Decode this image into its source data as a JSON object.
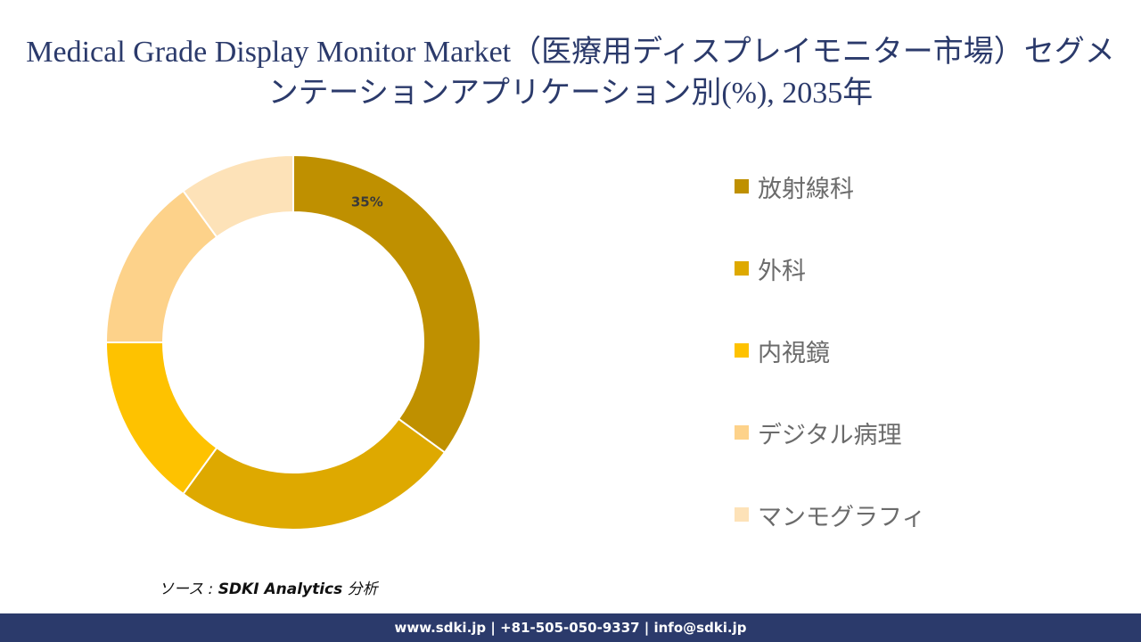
{
  "title": "Medical Grade Display Monitor Market（医療用ディスプレイモニター市場）セグメンテーションアプリケーション別(%), 2035年",
  "chart_data": {
    "type": "pie",
    "title": "Medical Grade Display Monitor Market（医療用ディスプレイモニター市場）セグメンテーションアプリケーション別(%), 2035年",
    "categories": [
      "放射線科",
      "外科",
      "内視鏡",
      "デジタル病理",
      "マンモグラフィ"
    ],
    "values": [
      35,
      25,
      15,
      15,
      10
    ],
    "colors": [
      "#bf9000",
      "#dea900",
      "#fec200",
      "#fdd28a",
      "#fde2b8"
    ],
    "data_labels": [
      "35%",
      "",
      "",
      "",
      ""
    ],
    "donut": true,
    "legend_position": "right"
  },
  "source": {
    "prefix": "ソース : ",
    "name": "SDKI Analytics",
    "suffix": " 分析"
  },
  "footer": {
    "contact": "www.sdki.jp | +81-505-050-9337 | info@sdki.jp"
  }
}
